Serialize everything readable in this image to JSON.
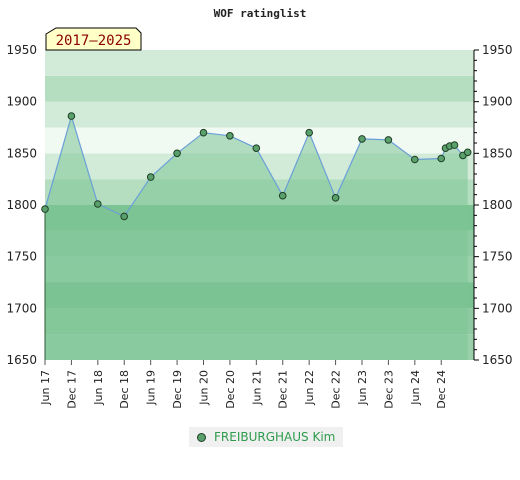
{
  "chart_data": {
    "type": "area",
    "title": "WOF ratinglist",
    "period_label": "2017–2025",
    "ylim": [
      1650,
      1950
    ],
    "yticks": [
      1650,
      1700,
      1750,
      1800,
      1850,
      1900,
      1950
    ],
    "x_tick_labels": [
      "Jun 17",
      "Dec 17",
      "Jun 18",
      "Dec 18",
      "Jun 19",
      "Dec 19",
      "Jun 20",
      "Dec 20",
      "Jun 21",
      "Dec 21",
      "Jun 22",
      "Dec 22",
      "Jun 23",
      "Dec 23",
      "Jun 24",
      "Dec 24"
    ],
    "x_range": [
      2017.42,
      2025.54
    ],
    "grid": true,
    "legend_position": "bottom-center",
    "colors": {
      "fill": "#7cc593",
      "line": "#6a9fd8",
      "marker": "#5aa06a",
      "marker_edge": "#1f3f26",
      "badge_bg": "#ffffc8",
      "badge_text": "#8b0000",
      "legend_text": "#2e9b4e"
    },
    "series": [
      {
        "name": "FREIBURGHAUS Kim",
        "x": [
          2017.42,
          2017.92,
          2018.42,
          2018.92,
          2019.42,
          2019.92,
          2020.42,
          2020.92,
          2021.42,
          2021.92,
          2022.42,
          2022.92,
          2023.42,
          2023.92,
          2024.42,
          2024.92,
          2025.0,
          2025.08,
          2025.17,
          2025.33,
          2025.42
        ],
        "y": [
          1796,
          1886,
          1801,
          1789,
          1827,
          1850,
          1870,
          1867,
          1855,
          1809,
          1870,
          1807,
          1864,
          1863,
          1844,
          1845,
          1855,
          1857,
          1858,
          1848,
          1851
        ]
      }
    ]
  }
}
